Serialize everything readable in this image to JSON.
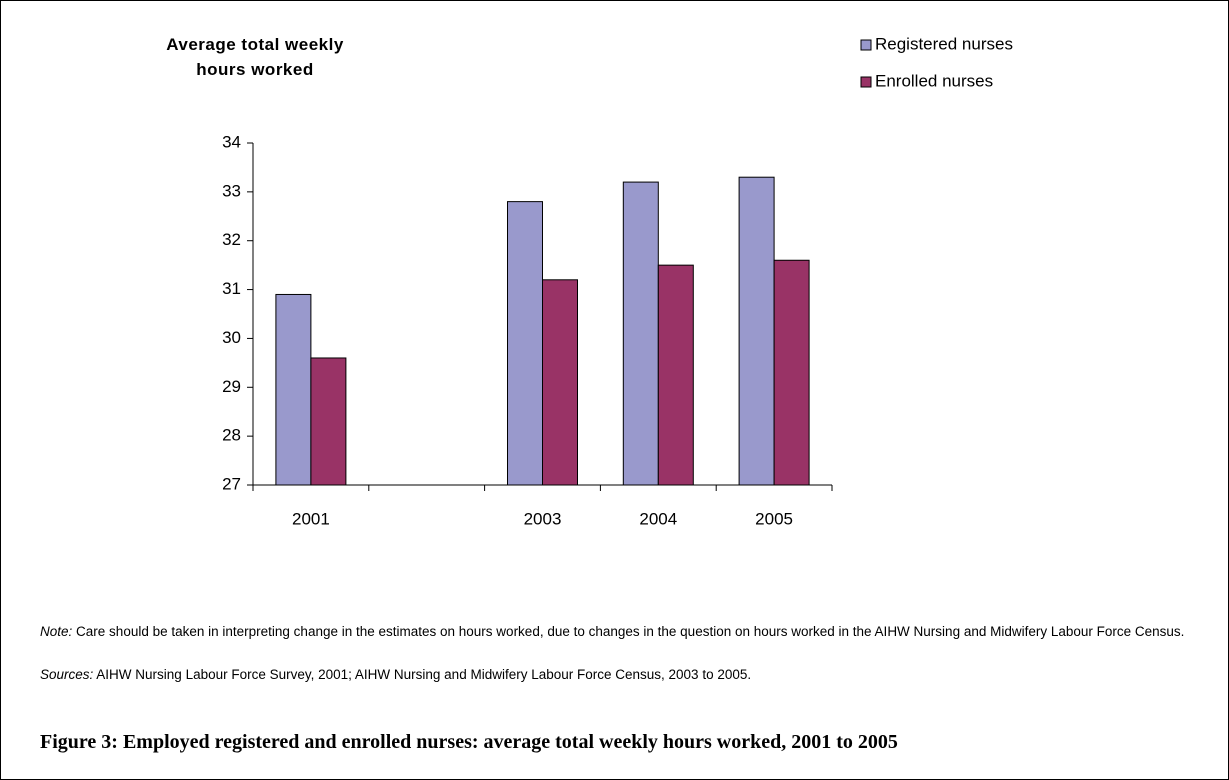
{
  "chart_data": {
    "type": "bar",
    "y_axis_label": "Average total weekly hours worked",
    "categories": [
      "2001",
      null,
      "2003",
      "2004",
      "2005"
    ],
    "series": [
      {
        "name": "Registered nurses",
        "color": "#9999cc",
        "values": [
          30.9,
          null,
          32.8,
          33.2,
          33.3
        ]
      },
      {
        "name": "Enrolled nurses",
        "color": "#993366",
        "values": [
          29.6,
          null,
          31.2,
          31.5,
          31.6
        ]
      }
    ],
    "ylim": [
      27,
      34
    ],
    "yticks": [
      27,
      28,
      29,
      30,
      31,
      32,
      33,
      34
    ],
    "legend": "top-right",
    "note_label": "Note:",
    "note": "Care should be taken in interpreting change in the estimates on hours worked, due to changes in the question on hours worked in the AIHW Nursing and Midwifery Labour Force Census.",
    "sources_label": "Sources:",
    "sources": "AIHW Nursing Labour Force Survey, 2001; AIHW Nursing and Midwifery Labour Force Census, 2003 to 2005.",
    "caption": "Figure 3: Employed registered and enrolled nurses: average total weekly hours worked, 2001 to 2005"
  }
}
